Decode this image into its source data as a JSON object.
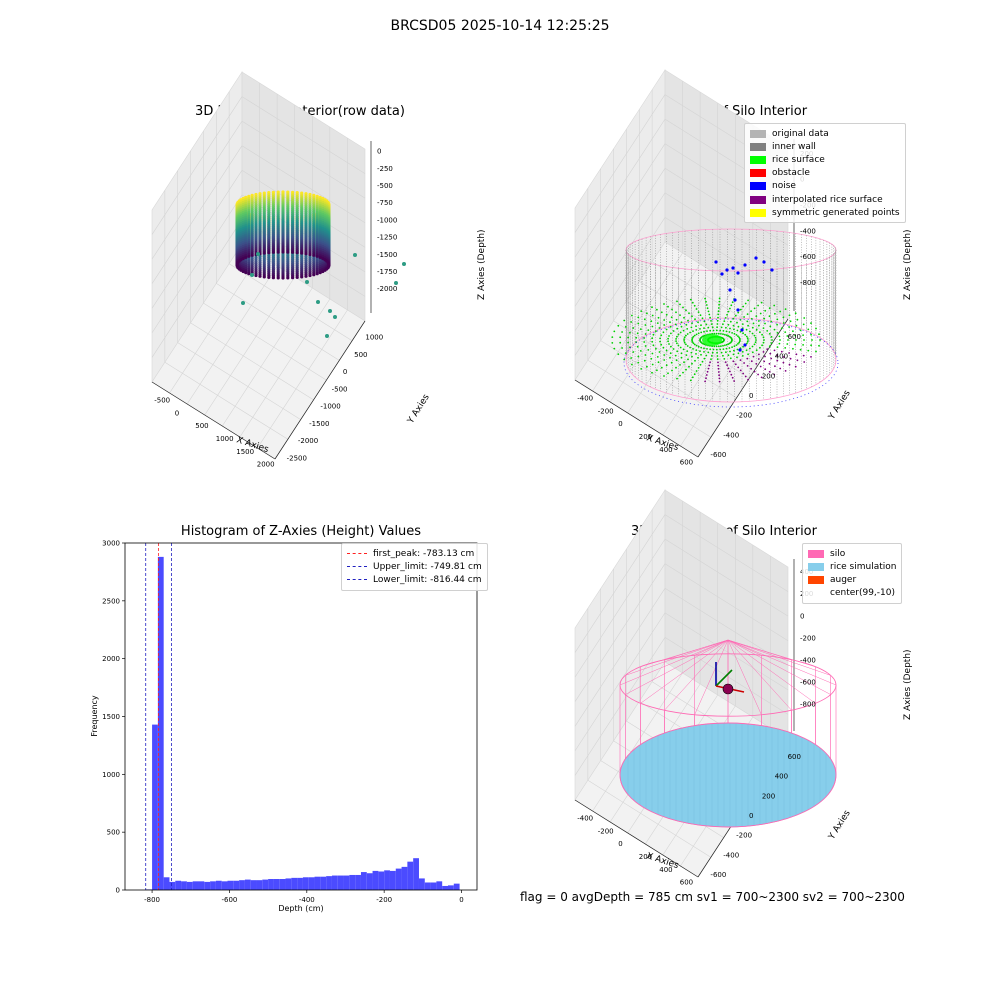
{
  "suptitle": "BRCSD05 2025-10-14 12:25:25",
  "flag_text": "flag = 0     avgDepth = 785 cm  sv1 = 700~2300  sv2 = 700~2300",
  "chart_data": [
    {
      "type": "scatter",
      "panel": "raw",
      "title": "3D Plot of Silo Interior(row data)",
      "xlabel": "X Axies",
      "ylabel": "Y Axies",
      "zlabel": "Z Axies (Depth)",
      "x_ticks": [
        "-500",
        "0",
        "500",
        "1000",
        "1500",
        "2000"
      ],
      "y_ticks": [
        "1000",
        "500",
        "0",
        "-500",
        "-1000",
        "-1500",
        "-2000",
        "-2500"
      ],
      "z_ticks": [
        "0",
        "-250",
        "-500",
        "-750",
        "-1000",
        "-1250",
        "-1500",
        "-1750",
        "-2000"
      ],
      "colormap": "viridis"
    },
    {
      "type": "scatter",
      "panel": "classify",
      "title": "3D classify of Silo Interior",
      "xlabel": "X Axies",
      "ylabel": "Y Axies",
      "zlabel": "Z Axies (Depth)",
      "x_ticks": [
        "-400",
        "-200",
        "0",
        "200",
        "400",
        "600"
      ],
      "y_ticks": [
        "600",
        "400",
        "200",
        "0",
        "-200",
        "-400",
        "-600"
      ],
      "z_ticks": [
        "200",
        "0",
        "-200",
        "-400",
        "-600",
        "-800"
      ],
      "legend": [
        {
          "label": "original data",
          "color": "#b4b4b4"
        },
        {
          "label": "inner wall",
          "color": "#808080"
        },
        {
          "label": "rice surface",
          "color": "#00ff00"
        },
        {
          "label": "obstacle",
          "color": "#ff0000"
        },
        {
          "label": "noise",
          "color": "#0000ff"
        },
        {
          "label": "interpolated rice surface",
          "color": "#800080"
        },
        {
          "label": "symmetric generated points",
          "color": "#ffff00"
        }
      ]
    },
    {
      "type": "bar",
      "panel": "histogram",
      "title": "Histogram of Z-Axies (Height) Values",
      "xlabel": "Depth (cm)",
      "ylabel": "Frequency",
      "xlim": [
        -870,
        40
      ],
      "ylim": [
        0,
        3000
      ],
      "x_ticks": [
        -800,
        -600,
        -400,
        -200,
        0
      ],
      "y_ticks": [
        0,
        500,
        1000,
        1500,
        2000,
        2500,
        3000
      ],
      "bin_width": 15,
      "bins": [
        [
          -815,
          5
        ],
        [
          -800,
          1430
        ],
        [
          -785,
          2880
        ],
        [
          -770,
          110
        ],
        [
          -755,
          70
        ],
        [
          -740,
          80
        ],
        [
          -725,
          75
        ],
        [
          -710,
          70
        ],
        [
          -695,
          75
        ],
        [
          -680,
          75
        ],
        [
          -665,
          70
        ],
        [
          -650,
          75
        ],
        [
          -635,
          80
        ],
        [
          -620,
          75
        ],
        [
          -605,
          80
        ],
        [
          -590,
          80
        ],
        [
          -575,
          85
        ],
        [
          -560,
          90
        ],
        [
          -545,
          85
        ],
        [
          -530,
          85
        ],
        [
          -515,
          90
        ],
        [
          -500,
          95
        ],
        [
          -485,
          95
        ],
        [
          -470,
          95
        ],
        [
          -455,
          100
        ],
        [
          -440,
          105
        ],
        [
          -425,
          105
        ],
        [
          -410,
          110
        ],
        [
          -395,
          110
        ],
        [
          -380,
          115
        ],
        [
          -365,
          115
        ],
        [
          -350,
          120
        ],
        [
          -335,
          125
        ],
        [
          -320,
          125
        ],
        [
          -305,
          125
        ],
        [
          -290,
          130
        ],
        [
          -275,
          130
        ],
        [
          -260,
          155
        ],
        [
          -245,
          145
        ],
        [
          -230,
          165
        ],
        [
          -215,
          160
        ],
        [
          -200,
          170
        ],
        [
          -185,
          165
        ],
        [
          -170,
          185
        ],
        [
          -155,
          200
        ],
        [
          -140,
          245
        ],
        [
          -125,
          275
        ],
        [
          -110,
          100
        ],
        [
          -95,
          65
        ],
        [
          -80,
          65
        ],
        [
          -65,
          75
        ],
        [
          -50,
          35
        ],
        [
          -35,
          40
        ],
        [
          -20,
          55
        ]
      ],
      "bar_color": "#4b4bff",
      "vlines": [
        {
          "label": "first_peak: -783.13 cm",
          "x": -783.13,
          "color": "#ff2020"
        },
        {
          "label": "Upper_limit: -749.81 cm",
          "x": -749.81,
          "color": "#2020c0"
        },
        {
          "label": "Lower_limit: -816.44 cm",
          "x": -816.44,
          "color": "#2020c0"
        }
      ]
    },
    {
      "type": "scatter",
      "panel": "simulation",
      "title": "3D simulation of Silo Interior",
      "xlabel": "X Axies",
      "ylabel": "Y Axies",
      "zlabel": "Z Axies (Depth)",
      "x_ticks": [
        "-400",
        "-200",
        "0",
        "200",
        "400",
        "600"
      ],
      "y_ticks": [
        "600",
        "400",
        "200",
        "0",
        "-200",
        "-400",
        "-600"
      ],
      "z_ticks": [
        "400",
        "200",
        "0",
        "-200",
        "-400",
        "-600",
        "-800"
      ],
      "legend": [
        {
          "label": "silo",
          "color": "#ff69b4"
        },
        {
          "label": "rice simulation",
          "color": "#87ceeb"
        },
        {
          "label": "auger",
          "color": "#ff4500"
        },
        {
          "label": "center(99,-10)",
          "color": ""
        }
      ]
    }
  ]
}
